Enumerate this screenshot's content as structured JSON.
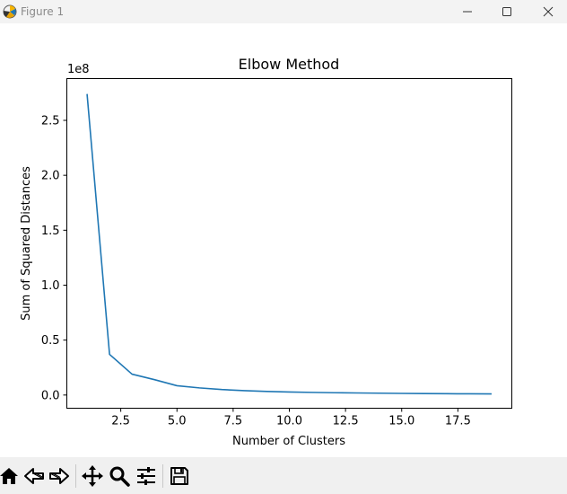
{
  "window": {
    "title": "Figure 1",
    "app_icon": "matplotlib-logo-icon",
    "controls": [
      "minimize-icon",
      "maximize-icon",
      "close-icon"
    ]
  },
  "chart_data": {
    "type": "line",
    "title": "Elbow Method",
    "xlabel": "Number of Clusters",
    "ylabel": "Sum of Squared Distances",
    "offset_text": "1e8",
    "xlim": [
      0.1,
      19.9
    ],
    "ylim": [
      -0.12,
      2.88
    ],
    "xticks": [
      2.5,
      5.0,
      7.5,
      10.0,
      12.5,
      15.0,
      17.5
    ],
    "xtick_labels": [
      "2.5",
      "5.0",
      "7.5",
      "10.0",
      "12.5",
      "15.0",
      "17.5"
    ],
    "yticks": [
      0.0,
      0.5,
      1.0,
      1.5,
      2.0,
      2.5
    ],
    "ytick_labels": [
      "0.0",
      "0.5",
      "1.0",
      "1.5",
      "2.0",
      "2.5"
    ],
    "grid": false,
    "line_color": "#1f77b4",
    "series": [
      {
        "x": [
          1,
          2,
          3,
          4,
          5,
          6,
          7,
          8,
          9,
          10,
          11,
          12,
          13,
          14,
          15,
          16,
          17,
          18,
          19
        ],
        "y": [
          2.74,
          0.37,
          0.19,
          0.14,
          0.085,
          0.065,
          0.05,
          0.04,
          0.033,
          0.028,
          0.024,
          0.021,
          0.019,
          0.017,
          0.015,
          0.013,
          0.012,
          0.011,
          0.01
        ]
      }
    ]
  },
  "toolbar": {
    "tools": [
      {
        "name": "home-icon",
        "label": "Home"
      },
      {
        "name": "back-icon",
        "label": "Back"
      },
      {
        "name": "forward-icon",
        "label": "Forward"
      },
      {
        "name": "pan-icon",
        "label": "Pan"
      },
      {
        "name": "zoom-icon",
        "label": "Zoom"
      },
      {
        "name": "subplots-icon",
        "label": "Subplots"
      },
      {
        "name": "save-icon",
        "label": "Save"
      }
    ]
  }
}
